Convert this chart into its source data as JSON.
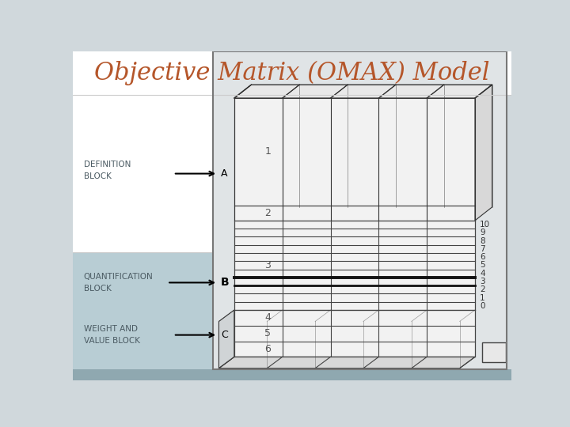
{
  "title": "Objective Matrix (OMAX) Model",
  "title_color": "#b5562a",
  "title_fontsize": 22,
  "bg_outer": "#d0d8dc",
  "bg_title_area": "#ffffff",
  "bg_left_top": "#ffffff",
  "bg_left_bottom": "#b8cdd4",
  "bg_main_panel": "#e0e4e6",
  "bg_diagram_content": "#f0f0f0",
  "grid_color": "#444444",
  "thick_line_color": "#111111",
  "label_color": "#555566",
  "row_numbers": [
    "10",
    "9",
    "8",
    "7",
    "6",
    "5",
    "4",
    "3",
    "2",
    "1",
    "0"
  ],
  "cell_labels": [
    "1",
    "2",
    "3",
    "4",
    "5",
    "6"
  ],
  "arrow_labels": [
    "A",
    "B",
    "C"
  ],
  "left_labels": [
    "DEFINITION\nBLOCK",
    "QUANTIFICATION\nBLOCK",
    "WEIGHT AND\nVALUE BLOCK"
  ]
}
